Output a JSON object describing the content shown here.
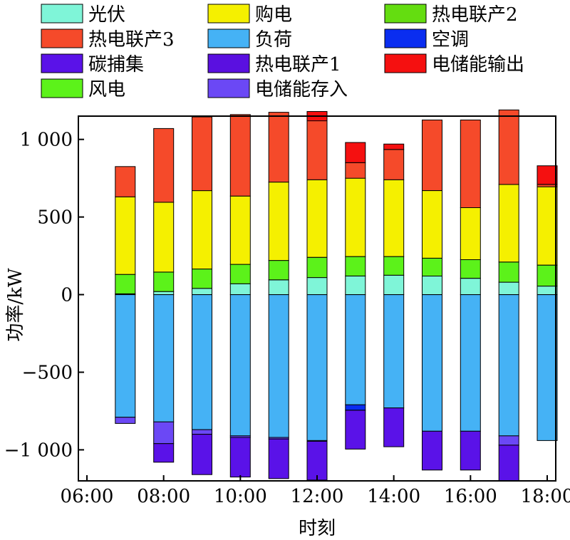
{
  "chart_data": {
    "type": "bar",
    "stacked": true,
    "xlabel": "时刻",
    "ylabel": "功率/kW",
    "x_tick_labels": [
      "06:00",
      "08:00",
      "10:00",
      "12:00",
      "14:00",
      "16:00",
      "18:00"
    ],
    "y_tick_labels": [
      "1 000",
      "500",
      "0",
      "−500",
      "−1 000"
    ],
    "y_ticks": [
      1000,
      500,
      0,
      -500,
      -1000
    ],
    "xlim": [
      6.0,
      18.0
    ],
    "ylim": [
      -1200,
      1150
    ],
    "grid": false,
    "legend_position": "top",
    "hours": [
      7,
      8,
      9,
      10,
      11,
      12,
      13,
      14,
      15,
      16,
      17,
      18
    ],
    "series": [
      {
        "key": "pv",
        "name": "光伏",
        "color": "#7ff5d8",
        "values": [
          5,
          20,
          40,
          70,
          95,
          110,
          120,
          125,
          120,
          105,
          80,
          55
        ]
      },
      {
        "key": "wind",
        "name": "风电",
        "color": "#5cf21a",
        "values": [
          125,
          125,
          125,
          125,
          125,
          130,
          125,
          120,
          115,
          120,
          130,
          135
        ]
      },
      {
        "key": "buy",
        "name": "购电",
        "color": "#f5f000",
        "values": [
          500,
          450,
          505,
          440,
          505,
          500,
          505,
          495,
          435,
          335,
          500,
          505
        ]
      },
      {
        "key": "chp3",
        "name": "热电联产3",
        "color": "#f54a2a",
        "values": [
          195,
          475,
          475,
          525,
          450,
          380,
          100,
          195,
          455,
          565,
          480,
          15
        ]
      },
      {
        "key": "es_out",
        "name": "电储能输出",
        "color": "#f51010",
        "values": [
          0,
          0,
          0,
          0,
          0,
          60,
          130,
          35,
          0,
          0,
          0,
          120
        ]
      },
      {
        "key": "load",
        "name": "负荷",
        "color": "#45b2f5",
        "values": [
          -790,
          -820,
          -870,
          -910,
          -920,
          -940,
          -710,
          -730,
          -880,
          -880,
          -910,
          -940
        ]
      },
      {
        "key": "es_in",
        "name": "电储能存入",
        "color": "#6b48f5",
        "values": [
          -40,
          -140,
          -30,
          -10,
          -10,
          -5,
          0,
          0,
          0,
          0,
          -60,
          0
        ]
      },
      {
        "key": "ac",
        "name": "空调",
        "color": "#0a2df0",
        "values": [
          0,
          0,
          0,
          0,
          0,
          0,
          -35,
          0,
          0,
          0,
          0,
          0
        ]
      },
      {
        "key": "ccs",
        "name": "碳捕集",
        "color": "#5a12e8",
        "values": [
          0,
          -120,
          -260,
          -255,
          -255,
          -250,
          -250,
          -250,
          -250,
          -250,
          -230,
          0
        ]
      }
    ],
    "legend_entries": [
      {
        "name": "光伏",
        "color": "#7ff5d8"
      },
      {
        "name": "购电",
        "color": "#f5f000"
      },
      {
        "name": "热电联产2",
        "color": "#64dd10"
      },
      {
        "name": "热电联产3",
        "color": "#f54a2a"
      },
      {
        "name": "负荷",
        "color": "#45b2f5"
      },
      {
        "name": "空调",
        "color": "#0a2df0"
      },
      {
        "name": "碳捕集",
        "color": "#5a12e8"
      },
      {
        "name": "热电联产1",
        "color": "#5a10e0"
      },
      {
        "name": "电储能输出",
        "color": "#f51010"
      },
      {
        "name": "风电",
        "color": "#5cf21a"
      },
      {
        "name": "电储能存入",
        "color": "#6b48f5"
      }
    ]
  }
}
